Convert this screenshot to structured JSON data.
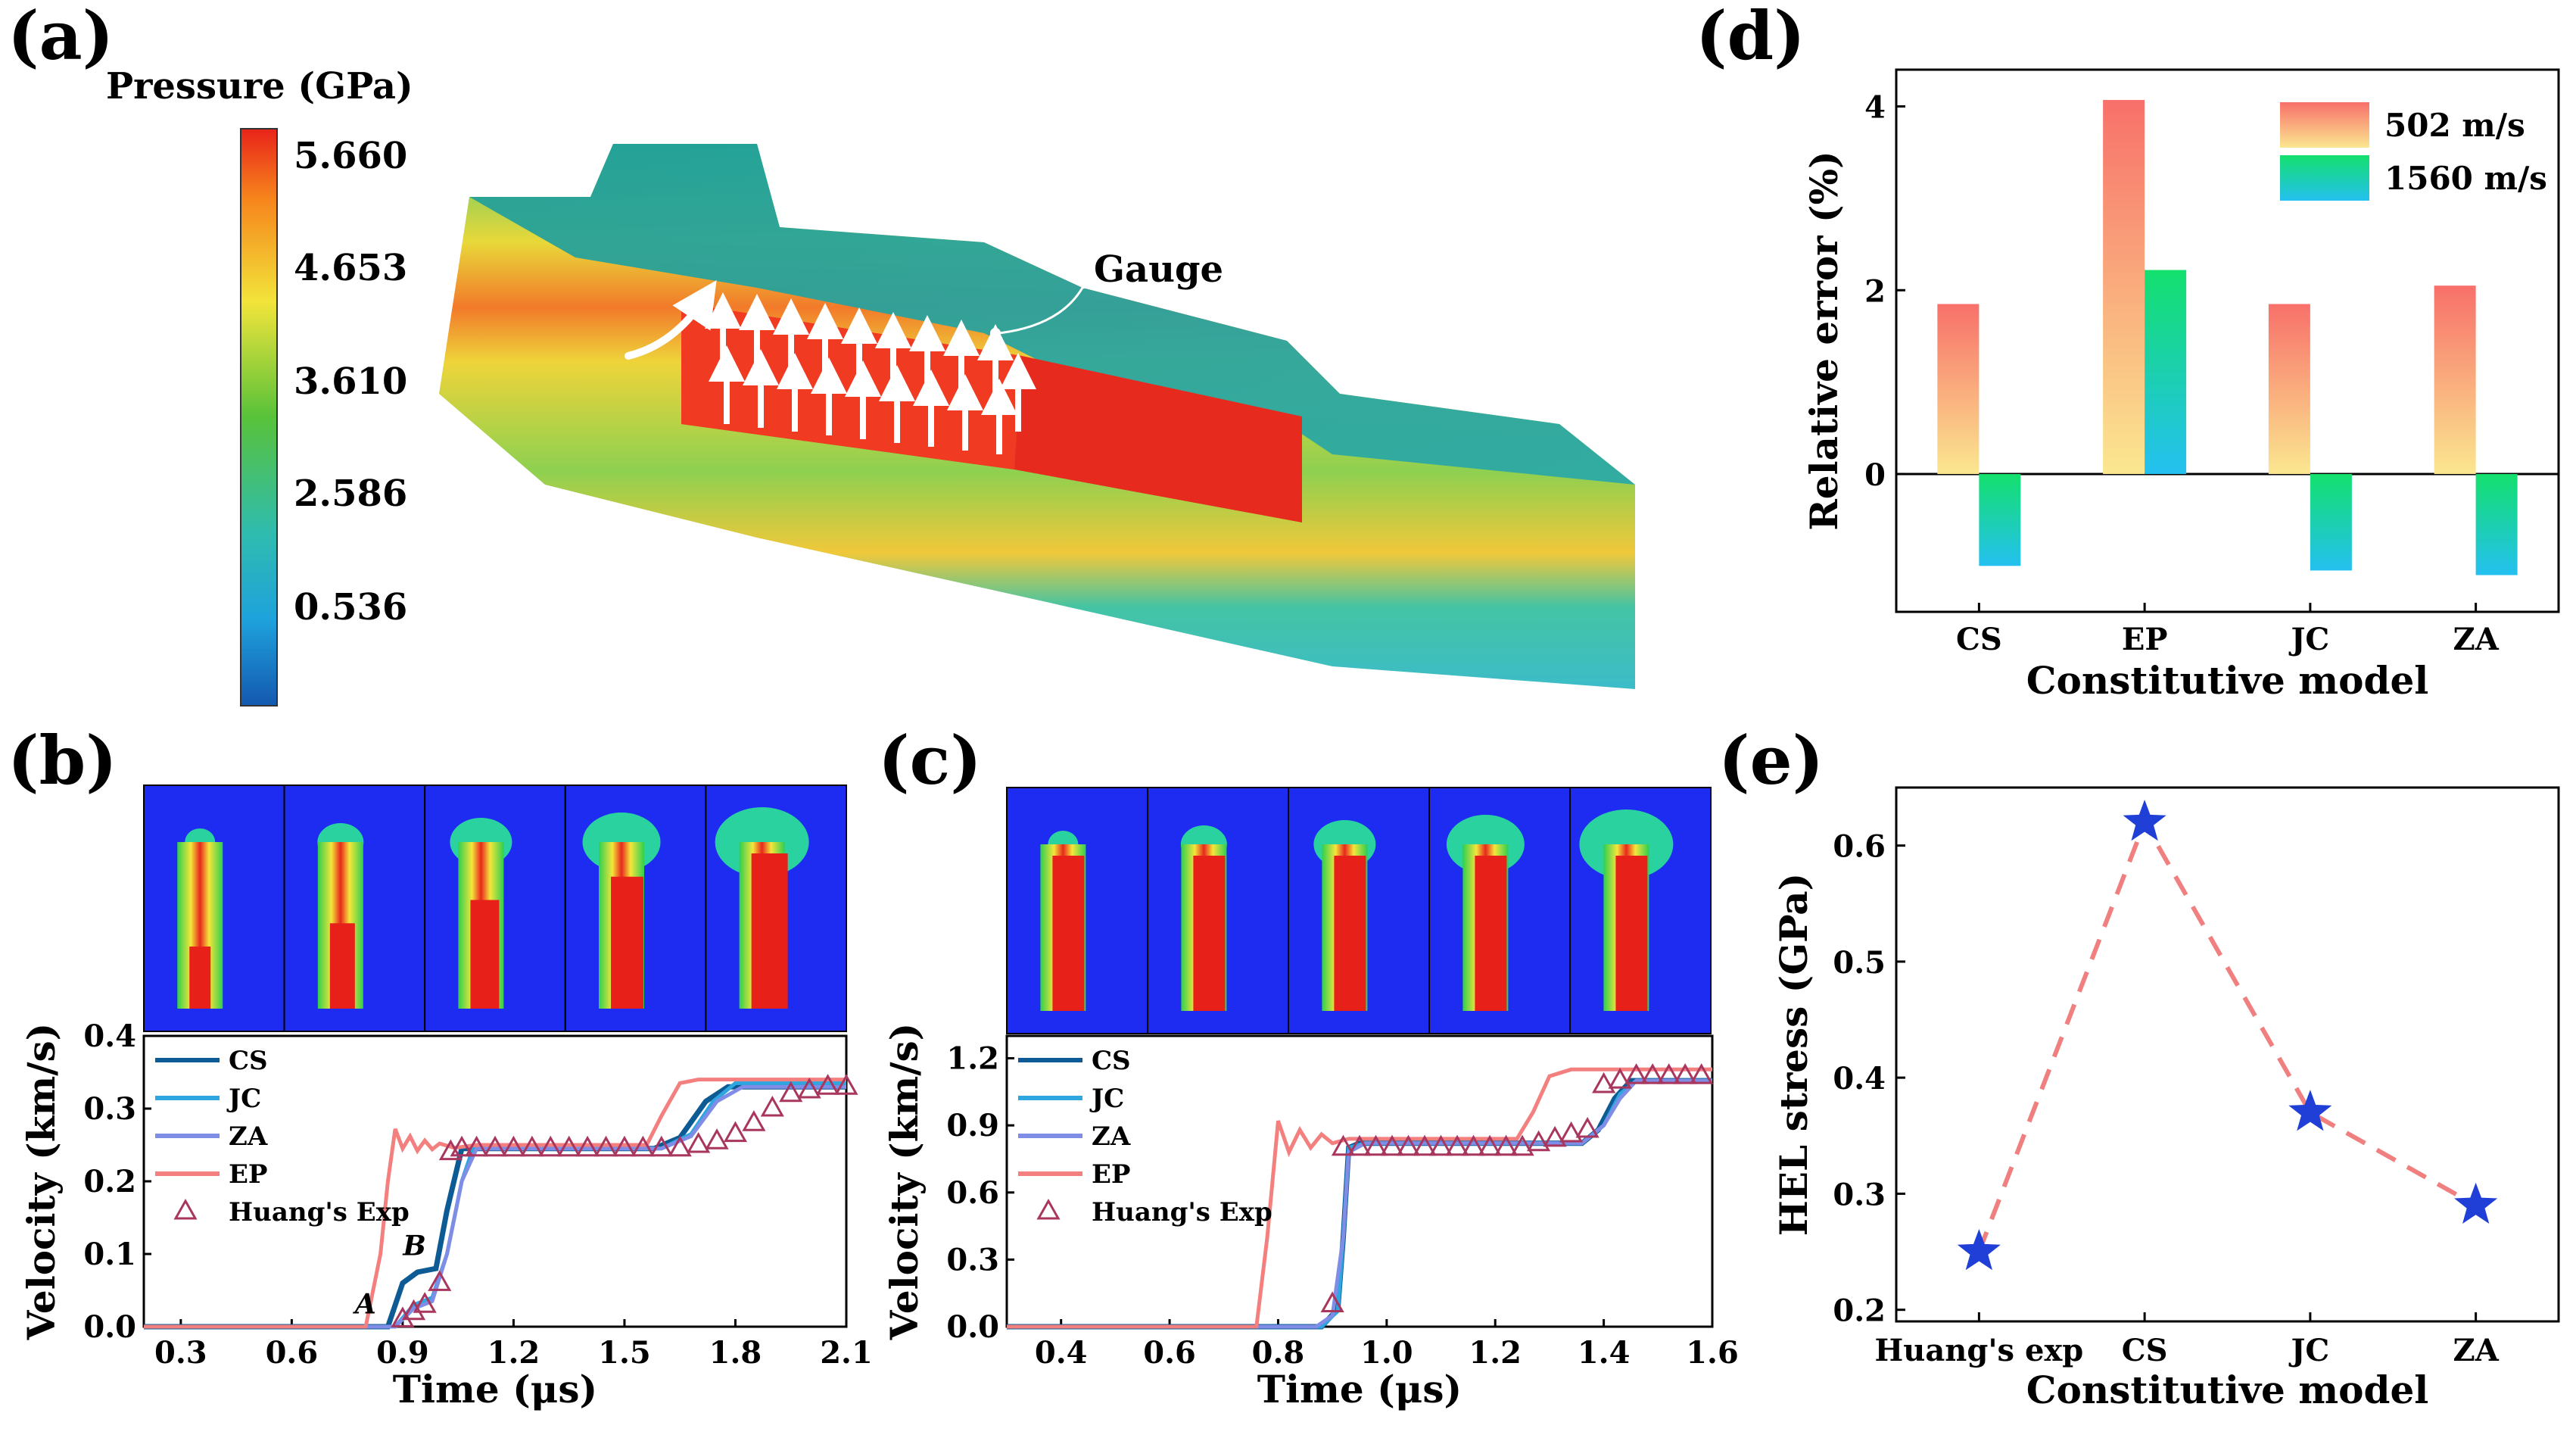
{
  "panel_labels": {
    "a": "(a)",
    "b": "(b)",
    "c": "(c)",
    "d": "(d)",
    "e": "(e)"
  },
  "colors": {
    "cs": "#0d5b94",
    "jc": "#2ea6e0",
    "za": "#7f8de6",
    "ep": "#f47f7f",
    "exp": "#a8365e",
    "star": "#1f3fd6",
    "dash": "#f08080"
  },
  "panel_a": {
    "colorbar_title": "Pressure (GPa)",
    "colorbar_ticks": [
      "5.660",
      "4.653",
      "3.610",
      "2.586",
      "0.536"
    ],
    "gauge_label": "Gauge",
    "icons": [
      "flow-arrow-icon",
      "up-arrow-icon"
    ]
  },
  "chart_data": [
    {
      "id": "b",
      "type": "line",
      "title": "",
      "xlabel": "Time (μs)",
      "ylabel": "Velocity (km/s)",
      "xlim": [
        0.2,
        2.1
      ],
      "ylim": [
        0,
        0.4
      ],
      "xticks": [
        "0.3",
        "0.6",
        "0.9",
        "1.2",
        "1.5",
        "1.8",
        "2.1"
      ],
      "yticks": [
        "0.0",
        "0.1",
        "0.2",
        "0.3",
        "0.4"
      ],
      "annotations": [
        "A",
        "B"
      ],
      "annotation_points": [
        [
          0.82,
          0.01
        ],
        [
          0.95,
          0.09
        ]
      ],
      "series": [
        {
          "name": "CS",
          "color": "#0d5b94",
          "x": [
            0.2,
            0.86,
            0.9,
            0.94,
            0.99,
            1.02,
            1.06,
            1.1,
            1.58,
            1.65,
            1.72,
            1.78,
            2.1
          ],
          "y": [
            0,
            0,
            0.06,
            0.075,
            0.08,
            0.16,
            0.245,
            0.245,
            0.245,
            0.26,
            0.31,
            0.33,
            0.33
          ]
        },
        {
          "name": "JC",
          "color": "#2ea6e0",
          "x": [
            0.2,
            0.88,
            0.93,
            0.98,
            1.02,
            1.06,
            1.09,
            1.6,
            1.68,
            1.74,
            1.8,
            2.1
          ],
          "y": [
            0,
            0,
            0.03,
            0.04,
            0.1,
            0.2,
            0.245,
            0.245,
            0.265,
            0.31,
            0.335,
            0.335
          ]
        },
        {
          "name": "ZA",
          "color": "#7f8de6",
          "x": [
            0.2,
            0.88,
            0.93,
            0.98,
            1.02,
            1.06,
            1.1,
            1.6,
            1.68,
            1.75,
            1.82,
            2.1
          ],
          "y": [
            0,
            0,
            0.025,
            0.035,
            0.1,
            0.2,
            0.245,
            0.245,
            0.262,
            0.31,
            0.33,
            0.33
          ]
        },
        {
          "name": "EP",
          "color": "#f47f7f",
          "x": [
            0.2,
            0.8,
            0.84,
            0.86,
            0.88,
            0.9,
            0.92,
            0.94,
            0.96,
            0.98,
            1.0,
            1.04,
            1.1,
            1.56,
            1.6,
            1.65,
            1.7,
            2.1
          ],
          "y": [
            0,
            0,
            0.1,
            0.2,
            0.272,
            0.245,
            0.262,
            0.242,
            0.256,
            0.244,
            0.252,
            0.246,
            0.25,
            0.25,
            0.29,
            0.335,
            0.34,
            0.34
          ]
        },
        {
          "name": "Huang's Exp",
          "color": "#a8365e",
          "marker": "triangle",
          "x": [
            0.9,
            0.93,
            0.96,
            1.0,
            1.03,
            1.06,
            1.1,
            1.15,
            1.2,
            1.25,
            1.3,
            1.35,
            1.4,
            1.45,
            1.5,
            1.55,
            1.6,
            1.65,
            1.7,
            1.75,
            1.8,
            1.85,
            1.9,
            1.95,
            2.0,
            2.05,
            2.1
          ],
          "y": [
            0.01,
            0.02,
            0.03,
            0.06,
            0.24,
            0.245,
            0.245,
            0.245,
            0.245,
            0.245,
            0.245,
            0.245,
            0.245,
            0.245,
            0.245,
            0.245,
            0.245,
            0.245,
            0.25,
            0.255,
            0.265,
            0.28,
            0.3,
            0.32,
            0.325,
            0.33,
            0.33
          ]
        }
      ]
    },
    {
      "id": "c",
      "type": "line",
      "title": "",
      "xlabel": "Time (μs)",
      "ylabel": "Velocity (km/s)",
      "xlim": [
        0.3,
        1.6
      ],
      "ylim": [
        0,
        1.3
      ],
      "xticks": [
        "0.4",
        "0.6",
        "0.8",
        "1.0",
        "1.2",
        "1.4",
        "1.6"
      ],
      "yticks": [
        "0.0",
        "0.3",
        "0.6",
        "0.9",
        "1.2"
      ],
      "series": [
        {
          "name": "CS",
          "color": "#0d5b94",
          "x": [
            0.3,
            0.88,
            0.91,
            0.92,
            0.93,
            0.95,
            1.36,
            1.39,
            1.42,
            1.45,
            1.6
          ],
          "y": [
            0,
            0,
            0.08,
            0.4,
            0.8,
            0.82,
            0.82,
            0.88,
            1.02,
            1.1,
            1.1
          ]
        },
        {
          "name": "JC",
          "color": "#2ea6e0",
          "x": [
            0.3,
            0.88,
            0.91,
            0.92,
            0.93,
            0.96,
            1.36,
            1.4,
            1.43,
            1.46,
            1.6
          ],
          "y": [
            0,
            0,
            0.07,
            0.4,
            0.8,
            0.82,
            0.82,
            0.9,
            1.04,
            1.1,
            1.1
          ]
        },
        {
          "name": "ZA",
          "color": "#7f8de6",
          "x": [
            0.3,
            0.87,
            0.9,
            0.92,
            0.93,
            0.96,
            1.36,
            1.4,
            1.43,
            1.46,
            1.6
          ],
          "y": [
            0,
            0,
            0.05,
            0.4,
            0.78,
            0.82,
            0.82,
            0.9,
            1.02,
            1.1,
            1.1
          ]
        },
        {
          "name": "EP",
          "color": "#f47f7f",
          "x": [
            0.3,
            0.76,
            0.78,
            0.8,
            0.82,
            0.84,
            0.86,
            0.88,
            0.9,
            0.93,
            1.0,
            1.24,
            1.27,
            1.3,
            1.34,
            1.6
          ],
          "y": [
            0,
            0,
            0.4,
            0.92,
            0.78,
            0.88,
            0.8,
            0.86,
            0.82,
            0.84,
            0.84,
            0.84,
            0.96,
            1.12,
            1.15,
            1.15
          ]
        },
        {
          "name": "Huang's Exp",
          "color": "#a8365e",
          "marker": "triangle",
          "x": [
            0.9,
            0.92,
            0.95,
            0.98,
            1.01,
            1.04,
            1.07,
            1.1,
            1.13,
            1.16,
            1.19,
            1.22,
            1.25,
            1.28,
            1.31,
            1.34,
            1.37,
            1.4,
            1.43,
            1.46,
            1.49,
            1.52,
            1.55,
            1.58
          ],
          "y": [
            0.1,
            0.8,
            0.8,
            0.8,
            0.8,
            0.8,
            0.8,
            0.8,
            0.8,
            0.8,
            0.8,
            0.8,
            0.8,
            0.82,
            0.84,
            0.86,
            0.88,
            1.08,
            1.1,
            1.12,
            1.12,
            1.12,
            1.12,
            1.12
          ]
        }
      ]
    },
    {
      "id": "d",
      "type": "bar",
      "title": "",
      "xlabel": "Constitutive model",
      "ylabel": "Relative error (%)",
      "ylim": [
        -1.5,
        4.4
      ],
      "yticks": [
        "0",
        "2",
        "4"
      ],
      "categories": [
        "CS",
        "EP",
        "JC",
        "ZA"
      ],
      "series": [
        {
          "name": "502 m/s",
          "gradient": [
            "#f8706a",
            "#fbe790"
          ],
          "values": [
            1.85,
            4.07,
            1.85,
            2.05
          ]
        },
        {
          "name": "1560 m/s",
          "gradient": [
            "#14e06e",
            "#24c0f0"
          ],
          "values": [
            -1.0,
            2.22,
            -1.05,
            -1.1
          ]
        }
      ]
    },
    {
      "id": "e",
      "type": "line",
      "title": "",
      "xlabel": "Constitutive model",
      "ylabel": "HEL stress (GPa)",
      "ylim": [
        0.19,
        0.65
      ],
      "yticks": [
        "0.2",
        "0.3",
        "0.4",
        "0.5",
        "0.6"
      ],
      "categories": [
        "Huang's exp",
        "CS",
        "JC",
        "ZA"
      ],
      "values": [
        0.25,
        0.62,
        0.37,
        0.29
      ],
      "marker": "star",
      "line_style": "dashed"
    }
  ]
}
